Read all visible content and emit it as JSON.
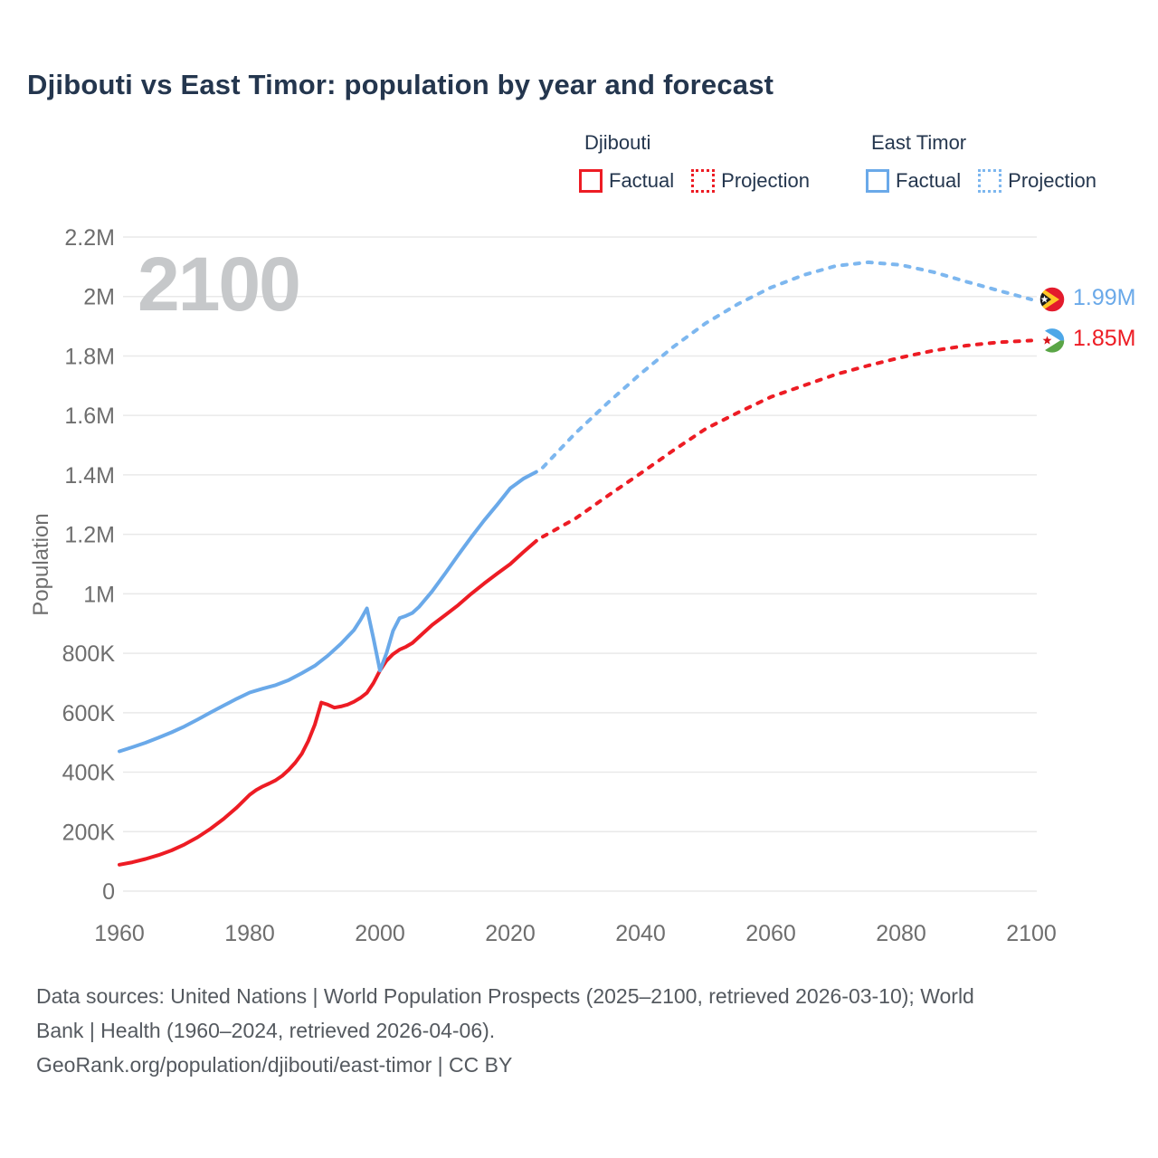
{
  "page": {
    "title": "Djibouti vs East Timor: population by year and forecast"
  },
  "legend": {
    "groups": [
      {
        "label": "Djibouti",
        "color": "#ed1c24",
        "projection_color": "#ed1c24",
        "items": [
          {
            "label": "Factual",
            "style": "solid"
          },
          {
            "label": "Projection",
            "style": "dotted"
          }
        ]
      },
      {
        "label": "East Timor",
        "color": "#6aa9e9",
        "projection_color": "#7db7ef",
        "items": [
          {
            "label": "Factual",
            "style": "solid"
          },
          {
            "label": "Projection",
            "style": "dotted"
          }
        ]
      }
    ]
  },
  "chart_data": {
    "type": "line",
    "title": "Djibouti vs East Timor: population by year and forecast",
    "xlabel": "",
    "ylabel": "Population",
    "watermark": "2100",
    "grid": true,
    "x_axis": {
      "min": 1960,
      "max": 2100,
      "ticks": [
        1960,
        1980,
        2000,
        2020,
        2040,
        2060,
        2080,
        2100
      ]
    },
    "y_axis": {
      "min": 0,
      "max": 2200000,
      "unit": "persons",
      "ticks": [
        {
          "value": 0.0,
          "label": "0"
        },
        {
          "value": 0.2,
          "label": "200K"
        },
        {
          "value": 0.4,
          "label": "400K"
        },
        {
          "value": 0.6,
          "label": "600K"
        },
        {
          "value": 0.8,
          "label": "800K"
        },
        {
          "value": 1.0,
          "label": "1M"
        },
        {
          "value": 1.2,
          "label": "1.2M"
        },
        {
          "value": 1.4,
          "label": "1.4M"
        },
        {
          "value": 1.6,
          "label": "1.6M"
        },
        {
          "value": 1.8,
          "label": "1.8M"
        },
        {
          "value": 2.0,
          "label": "2M"
        },
        {
          "value": 2.2,
          "label": "2.2M"
        }
      ]
    },
    "series": [
      {
        "name": "Djibouti Factual",
        "style": "solid",
        "color": "#ed1c24",
        "points_unit_millions": true,
        "points": [
          [
            1960,
            0.089
          ],
          [
            1962,
            0.097
          ],
          [
            1964,
            0.108
          ],
          [
            1966,
            0.121
          ],
          [
            1968,
            0.137
          ],
          [
            1970,
            0.157
          ],
          [
            1972,
            0.181
          ],
          [
            1974,
            0.21
          ],
          [
            1976,
            0.243
          ],
          [
            1978,
            0.281
          ],
          [
            1980,
            0.324
          ],
          [
            1981,
            0.34
          ],
          [
            1982,
            0.352
          ],
          [
            1983,
            0.362
          ],
          [
            1984,
            0.373
          ],
          [
            1985,
            0.388
          ],
          [
            1986,
            0.408
          ],
          [
            1987,
            0.432
          ],
          [
            1988,
            0.462
          ],
          [
            1989,
            0.505
          ],
          [
            1990,
            0.56
          ],
          [
            1991,
            0.634
          ],
          [
            1992,
            0.627
          ],
          [
            1993,
            0.617
          ],
          [
            1994,
            0.621
          ],
          [
            1995,
            0.627
          ],
          [
            1996,
            0.637
          ],
          [
            1997,
            0.65
          ],
          [
            1998,
            0.667
          ],
          [
            1999,
            0.7
          ],
          [
            2000,
            0.742
          ],
          [
            2001,
            0.775
          ],
          [
            2002,
            0.797
          ],
          [
            2003,
            0.812
          ],
          [
            2004,
            0.822
          ],
          [
            2005,
            0.835
          ],
          [
            2006,
            0.855
          ],
          [
            2008,
            0.895
          ],
          [
            2010,
            0.928
          ],
          [
            2012,
            0.962
          ],
          [
            2014,
            1.0
          ],
          [
            2016,
            1.035
          ],
          [
            2018,
            1.068
          ],
          [
            2020,
            1.1
          ],
          [
            2022,
            1.14
          ],
          [
            2024,
            1.178
          ]
        ]
      },
      {
        "name": "Djibouti Projection",
        "style": "dotted",
        "color": "#ed1c24",
        "points_unit_millions": true,
        "points": [
          [
            2025,
            1.192
          ],
          [
            2030,
            1.253
          ],
          [
            2035,
            1.33
          ],
          [
            2040,
            1.405
          ],
          [
            2045,
            1.482
          ],
          [
            2050,
            1.555
          ],
          [
            2055,
            1.61
          ],
          [
            2060,
            1.662
          ],
          [
            2065,
            1.7
          ],
          [
            2070,
            1.738
          ],
          [
            2075,
            1.768
          ],
          [
            2080,
            1.795
          ],
          [
            2085,
            1.818
          ],
          [
            2090,
            1.835
          ],
          [
            2095,
            1.846
          ],
          [
            2100,
            1.852
          ]
        ]
      },
      {
        "name": "East Timor Factual",
        "style": "solid",
        "color": "#6aa9e9",
        "points_unit_millions": true,
        "points": [
          [
            1960,
            0.47
          ],
          [
            1962,
            0.484
          ],
          [
            1964,
            0.499
          ],
          [
            1966,
            0.516
          ],
          [
            1968,
            0.534
          ],
          [
            1970,
            0.554
          ],
          [
            1972,
            0.577
          ],
          [
            1974,
            0.601
          ],
          [
            1976,
            0.624
          ],
          [
            1978,
            0.647
          ],
          [
            1980,
            0.668
          ],
          [
            1982,
            0.681
          ],
          [
            1984,
            0.693
          ],
          [
            1986,
            0.71
          ],
          [
            1988,
            0.733
          ],
          [
            1990,
            0.758
          ],
          [
            1992,
            0.792
          ],
          [
            1994,
            0.832
          ],
          [
            1996,
            0.878
          ],
          [
            1997,
            0.912
          ],
          [
            1998,
            0.951
          ],
          [
            1999,
            0.85
          ],
          [
            2000,
            0.742
          ],
          [
            2001,
            0.8
          ],
          [
            2002,
            0.875
          ],
          [
            2003,
            0.918
          ],
          [
            2004,
            0.926
          ],
          [
            2005,
            0.936
          ],
          [
            2006,
            0.956
          ],
          [
            2008,
            1.008
          ],
          [
            2010,
            1.068
          ],
          [
            2012,
            1.13
          ],
          [
            2014,
            1.19
          ],
          [
            2016,
            1.247
          ],
          [
            2018,
            1.3
          ],
          [
            2020,
            1.355
          ],
          [
            2022,
            1.387
          ],
          [
            2024,
            1.41
          ]
        ]
      },
      {
        "name": "East Timor Projection",
        "style": "dotted",
        "color": "#7db7ef",
        "points_unit_millions": true,
        "points": [
          [
            2025,
            1.425
          ],
          [
            2030,
            1.54
          ],
          [
            2035,
            1.643
          ],
          [
            2040,
            1.74
          ],
          [
            2045,
            1.83
          ],
          [
            2050,
            1.91
          ],
          [
            2055,
            1.975
          ],
          [
            2060,
            2.03
          ],
          [
            2065,
            2.072
          ],
          [
            2070,
            2.103
          ],
          [
            2075,
            2.115
          ],
          [
            2080,
            2.106
          ],
          [
            2085,
            2.082
          ],
          [
            2090,
            2.05
          ],
          [
            2095,
            2.02
          ],
          [
            2100,
            1.99
          ]
        ]
      }
    ],
    "end_labels": [
      {
        "series": "East Timor",
        "text": "1.99M",
        "value_millions": 1.99,
        "color": "#6aa9e9",
        "flag": "east-timor"
      },
      {
        "series": "Djibouti",
        "text": "1.85M",
        "value_millions": 1.852,
        "color": "#ed1c24",
        "flag": "djibouti"
      }
    ],
    "legend_position": "top-right"
  },
  "footer": {
    "lines": [
      "Data sources: United Nations | World Population Prospects (2025–2100, retrieved 2026-03-10); World",
      "Bank | Health (1960–2024, retrieved 2026-04-06).",
      "GeoRank.org/population/djibouti/east-timor | CC BY"
    ]
  }
}
